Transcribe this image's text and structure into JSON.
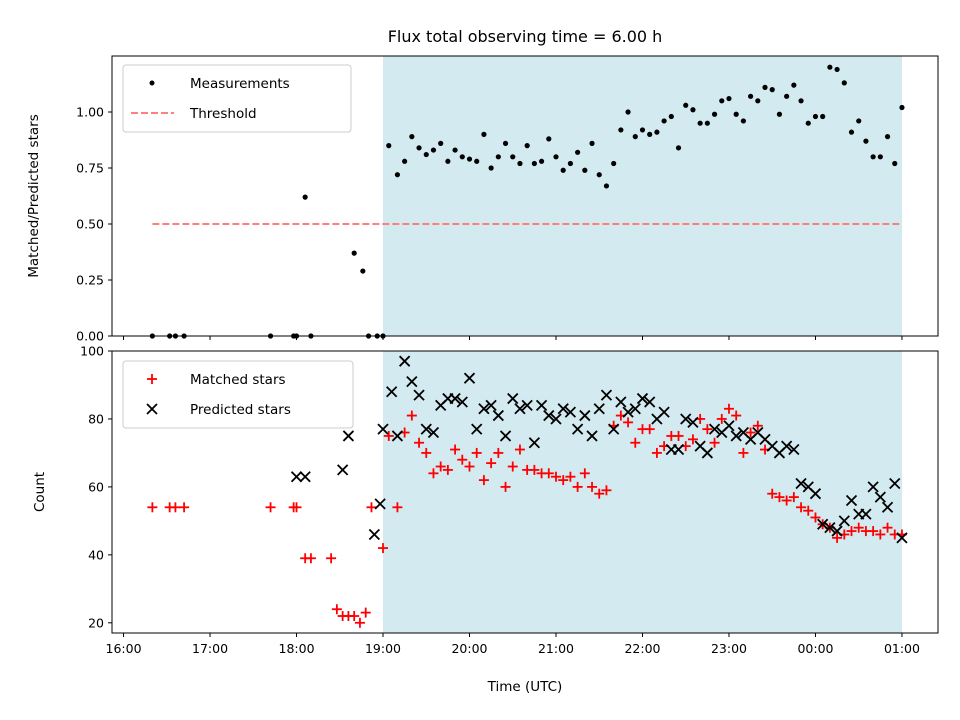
{
  "chart_data": [
    {
      "type": "scatter",
      "title": "Flux total observing time = 6.00 h",
      "xlabel": "",
      "ylabel": "Matched/Predicted stars",
      "ylim": [
        0,
        1.25
      ],
      "yticks": [
        0.0,
        0.25,
        0.5,
        0.75,
        1.0
      ],
      "ytick_labels": [
        "0.00",
        "0.25",
        "0.50",
        "0.75",
        "1.00"
      ],
      "shaded_region": {
        "from": "19:00",
        "to": "01:00",
        "color": "#d3eaf0"
      },
      "legend": {
        "position": "top-left",
        "entries": [
          {
            "label": "Measurements",
            "marker": "dot",
            "color": "#000000"
          },
          {
            "label": "Threshold",
            "marker": "dashed-line",
            "color": "#ff7f7f"
          }
        ]
      },
      "series": [
        {
          "name": "Measurements",
          "color": "#000000",
          "marker": "dot",
          "x": [
            "16:20",
            "16:32",
            "16:36",
            "16:42",
            "17:42",
            "17:58",
            "18:00",
            "18:06",
            "18:10",
            "18:40",
            "18:46",
            "18:50",
            "18:56",
            "19:00",
            "19:04",
            "19:10",
            "19:15",
            "19:20",
            "19:25",
            "19:30",
            "19:35",
            "19:40",
            "19:45",
            "19:50",
            "19:55",
            "20:00",
            "20:05",
            "20:10",
            "20:15",
            "20:20",
            "20:25",
            "20:30",
            "20:35",
            "20:40",
            "20:45",
            "20:50",
            "20:55",
            "21:00",
            "21:05",
            "21:10",
            "21:15",
            "21:20",
            "21:25",
            "21:30",
            "21:35",
            "21:40",
            "21:45",
            "21:50",
            "21:55",
            "22:00",
            "22:05",
            "22:10",
            "22:15",
            "22:20",
            "22:25",
            "22:30",
            "22:35",
            "22:40",
            "22:45",
            "22:50",
            "22:55",
            "23:00",
            "23:05",
            "23:10",
            "23:15",
            "23:20",
            "23:25",
            "23:30",
            "23:35",
            "23:40",
            "23:45",
            "23:50",
            "23:55",
            "00:00",
            "00:05",
            "00:10",
            "00:15",
            "00:20",
            "00:25",
            "00:30",
            "00:35",
            "00:40",
            "00:45",
            "00:50",
            "00:55",
            "01:00"
          ],
          "y": [
            0.0,
            0.0,
            0.0,
            0.0,
            0.0,
            0.0,
            0.0,
            0.62,
            0.0,
            0.37,
            0.29,
            0.0,
            0.0,
            0.0,
            0.85,
            0.72,
            0.78,
            0.89,
            0.84,
            0.81,
            0.83,
            0.86,
            0.78,
            0.83,
            0.8,
            0.79,
            0.78,
            0.9,
            0.75,
            0.8,
            0.86,
            0.8,
            0.77,
            0.85,
            0.77,
            0.78,
            0.88,
            0.8,
            0.74,
            0.77,
            0.82,
            0.74,
            0.86,
            0.72,
            0.67,
            0.77,
            0.92,
            1.0,
            0.89,
            0.92,
            0.9,
            0.91,
            0.96,
            0.98,
            0.84,
            1.03,
            1.01,
            0.95,
            0.95,
            0.99,
            1.05,
            1.06,
            0.99,
            0.96,
            1.07,
            1.05,
            1.11,
            1.1,
            0.99,
            1.07,
            1.12,
            1.05,
            0.95,
            0.98,
            0.98,
            1.2,
            1.19,
            1.13,
            0.91,
            0.96,
            0.87,
            0.8,
            0.8,
            0.89,
            0.77,
            1.02
          ]
        },
        {
          "name": "Threshold",
          "color": "#ff7f7f",
          "style": "dashed",
          "x": [
            "16:20",
            "01:00"
          ],
          "y": [
            0.5,
            0.5
          ]
        }
      ]
    },
    {
      "type": "scatter",
      "title": "",
      "xlabel": "Time (UTC)",
      "ylabel": "Count",
      "ylim": [
        17,
        100
      ],
      "yticks": [
        20,
        40,
        60,
        80,
        100
      ],
      "xticks": [
        "16:00",
        "17:00",
        "18:00",
        "19:00",
        "20:00",
        "21:00",
        "22:00",
        "23:00",
        "00:00",
        "01:00"
      ],
      "shaded_region": {
        "from": "19:00",
        "to": "01:00",
        "color": "#d3eaf0"
      },
      "legend": {
        "position": "top-left",
        "entries": [
          {
            "label": "Matched stars",
            "marker": "plus",
            "color": "#ff0000"
          },
          {
            "label": "Predicted stars",
            "marker": "x",
            "color": "#000000"
          }
        ]
      },
      "series": [
        {
          "name": "Matched stars",
          "color": "#ff0000",
          "marker": "plus",
          "x": [
            "16:20",
            "16:32",
            "16:36",
            "16:42",
            "17:42",
            "17:58",
            "18:00",
            "18:06",
            "18:10",
            "18:24",
            "18:28",
            "18:32",
            "18:36",
            "18:40",
            "18:44",
            "18:48",
            "18:52",
            "19:00",
            "19:04",
            "19:10",
            "19:15",
            "19:20",
            "19:25",
            "19:30",
            "19:35",
            "19:40",
            "19:45",
            "19:50",
            "19:55",
            "20:00",
            "20:05",
            "20:10",
            "20:15",
            "20:20",
            "20:25",
            "20:30",
            "20:35",
            "20:40",
            "20:45",
            "20:50",
            "20:55",
            "21:00",
            "21:05",
            "21:10",
            "21:15",
            "21:20",
            "21:25",
            "21:30",
            "21:35",
            "21:40",
            "21:45",
            "21:50",
            "21:55",
            "22:00",
            "22:05",
            "22:10",
            "22:15",
            "22:20",
            "22:25",
            "22:30",
            "22:35",
            "22:40",
            "22:45",
            "22:50",
            "22:55",
            "23:00",
            "23:05",
            "23:10",
            "23:15",
            "23:20",
            "23:25",
            "23:30",
            "23:35",
            "23:40",
            "23:45",
            "23:50",
            "23:55",
            "00:00",
            "00:05",
            "00:10",
            "00:15",
            "00:20",
            "00:25",
            "00:30",
            "00:35",
            "00:40",
            "00:45",
            "00:50",
            "00:55",
            "01:00"
          ],
          "y": [
            54,
            54,
            54,
            54,
            54,
            54,
            54,
            39,
            39,
            39,
            24,
            22,
            22,
            22,
            20,
            23,
            54,
            42,
            75,
            54,
            76,
            81,
            73,
            70,
            64,
            66,
            65,
            71,
            68,
            66,
            70,
            62,
            67,
            70,
            60,
            66,
            71,
            65,
            65,
            64,
            64,
            63,
            62,
            63,
            60,
            64,
            60,
            58,
            59,
            78,
            81,
            79,
            73,
            77,
            77,
            70,
            72,
            75,
            75,
            72,
            74,
            80,
            77,
            73,
            80,
            83,
            81,
            70,
            76,
            78,
            71,
            58,
            57,
            56,
            57,
            54,
            53,
            51,
            49,
            48,
            45,
            46,
            47,
            48,
            47,
            47,
            46,
            48,
            46,
            46
          ]
        },
        {
          "name": "Predicted stars",
          "color": "#000000",
          "marker": "x",
          "x": [
            "18:00",
            "18:06",
            "18:32",
            "18:36",
            "18:54",
            "18:58",
            "19:00",
            "19:06",
            "19:10",
            "19:15",
            "19:20",
            "19:25",
            "19:30",
            "19:35",
            "19:40",
            "19:45",
            "19:50",
            "19:55",
            "20:00",
            "20:05",
            "20:10",
            "20:15",
            "20:20",
            "20:25",
            "20:30",
            "20:35",
            "20:40",
            "20:45",
            "20:50",
            "20:55",
            "21:00",
            "21:05",
            "21:10",
            "21:15",
            "21:20",
            "21:25",
            "21:30",
            "21:35",
            "21:40",
            "21:45",
            "21:50",
            "21:55",
            "22:00",
            "22:05",
            "22:10",
            "22:15",
            "22:20",
            "22:25",
            "22:30",
            "22:35",
            "22:40",
            "22:45",
            "22:50",
            "22:55",
            "23:00",
            "23:05",
            "23:10",
            "23:15",
            "23:20",
            "23:25",
            "23:30",
            "23:35",
            "23:40",
            "23:45",
            "23:50",
            "23:55",
            "00:00",
            "00:05",
            "00:10",
            "00:15",
            "00:20",
            "00:25",
            "00:30",
            "00:35",
            "00:40",
            "00:45",
            "00:50",
            "00:55",
            "01:00"
          ],
          "y": [
            63,
            63,
            65,
            75,
            46,
            55,
            77,
            88,
            75,
            97,
            91,
            87,
            77,
            76,
            84,
            86,
            86,
            85,
            92,
            77,
            83,
            84,
            81,
            75,
            86,
            83,
            84,
            73,
            84,
            81,
            80,
            83,
            82,
            77,
            81,
            75,
            83,
            87,
            77,
            85,
            82,
            83,
            86,
            85,
            80,
            82,
            71,
            71,
            80,
            79,
            72,
            70,
            77,
            76,
            78,
            75,
            76,
            74,
            76,
            74,
            72,
            70,
            72,
            71,
            61,
            60,
            58,
            49,
            48,
            47,
            50,
            56,
            52,
            52,
            60,
            57,
            54,
            61,
            45
          ]
        }
      ]
    }
  ]
}
